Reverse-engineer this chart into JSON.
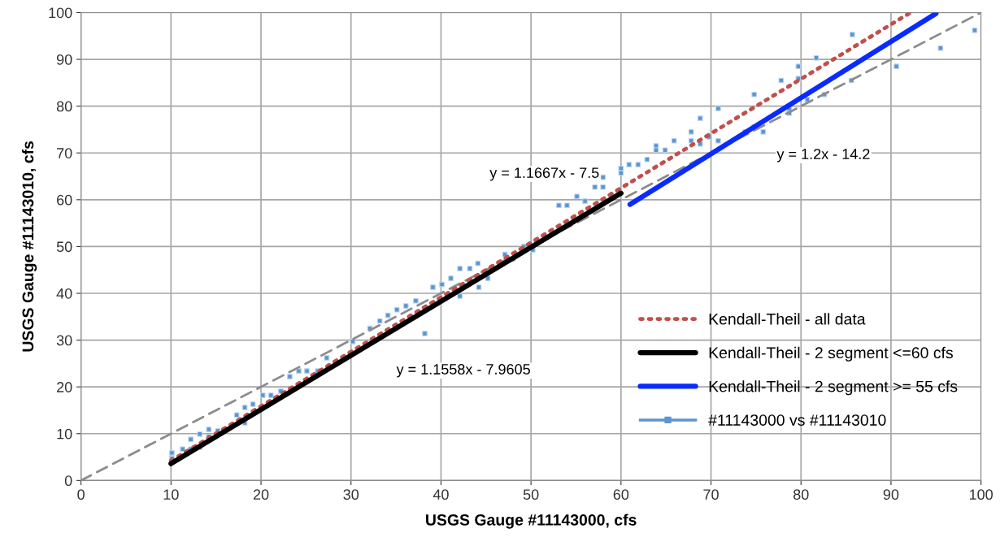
{
  "chart_data": {
    "type": "scatter",
    "xlabel": "USGS Gauge #11143000, cfs",
    "ylabel": "USGS Gauge #11143010, cfs",
    "xlim": [
      0,
      100
    ],
    "ylim": [
      0,
      100
    ],
    "xticks": [
      0,
      10,
      20,
      30,
      40,
      50,
      60,
      70,
      80,
      90,
      100
    ],
    "yticks": [
      0,
      10,
      20,
      30,
      40,
      50,
      60,
      70,
      80,
      90,
      100
    ],
    "grid": true,
    "legend": "lower right",
    "series": [
      {
        "type": "line",
        "color": "#8c8c8c",
        "line_style": "dashed",
        "marker": "none",
        "x": [
          0,
          100
        ],
        "values": [
          0,
          100
        ]
      },
      {
        "name": "#11143000 vs #11143010",
        "color": "#5b95d0",
        "marker": "square",
        "x": [
          10.1,
          10.1,
          11.3,
          12.2,
          12.2,
          13.2,
          13.2,
          14.2,
          14.2,
          15.2,
          16.1,
          17.3,
          18.2,
          18.2,
          19.1,
          20.2,
          21.1,
          22.2,
          23.2,
          24.2,
          25.1,
          26.3,
          27.3,
          30.2,
          32.1,
          33.2,
          34.1,
          35.1,
          36.1,
          37.2,
          38.2,
          39.1,
          40.1,
          41.1,
          42.1,
          42.1,
          43.2,
          44.1,
          44.2,
          45.2,
          47.1,
          48.0,
          49.2,
          50.2,
          53.1,
          54.0,
          55.1,
          56.0,
          57.1,
          58.0,
          58.0,
          60.0,
          60.0,
          60.9,
          61.9,
          62.9,
          63.9,
          63.9,
          64.9,
          65.9,
          67.8,
          67.8,
          68.8,
          68.8,
          69.8,
          70.8,
          70.8,
          73.8,
          74.8,
          74.8,
          75.8,
          77.8,
          78.7,
          78.7,
          79.7,
          79.7,
          80.7,
          81.7,
          82.6,
          85.6,
          85.7,
          90.6,
          95.5,
          99.3
        ],
        "values": [
          4.7,
          5.9,
          6.7,
          6.7,
          8.8,
          7.1,
          9.9,
          9.4,
          10.9,
          10.6,
          10.8,
          14.0,
          12.3,
          15.6,
          16.3,
          18.2,
          18.2,
          19.1,
          22.2,
          23.4,
          23.4,
          23.4,
          26.2,
          29.7,
          32.5,
          34.1,
          35.3,
          36.5,
          37.3,
          38.4,
          31.4,
          41.3,
          41.9,
          43.2,
          39.4,
          45.3,
          45.3,
          46.4,
          41.3,
          43.2,
          48.3,
          47.3,
          50.0,
          49.3,
          58.8,
          58.8,
          60.7,
          59.7,
          62.7,
          64.8,
          62.7,
          66.7,
          65.7,
          67.5,
          67.5,
          68.6,
          71.5,
          70.6,
          70.6,
          72.6,
          74.5,
          72.6,
          77.4,
          71.9,
          73.4,
          79.5,
          72.6,
          74.5,
          82.5,
          75.6,
          74.5,
          85.5,
          79.3,
          78.5,
          88.5,
          85.9,
          81.4,
          90.3,
          82.5,
          85.5,
          95.3,
          88.5,
          92.4,
          96.2
        ]
      },
      {
        "type": "line",
        "name": "Kendall-Theil - all data",
        "color": "#c0504d",
        "line_style": "dotted",
        "marker": "none",
        "x": [
          10,
          92
        ],
        "values": [
          4.2,
          99.8
        ]
      },
      {
        "type": "line",
        "name": "Kendall-Theil - 2 segment <=60 cfs",
        "color": "#000000",
        "line_style": "solid",
        "marker": "none",
        "x": [
          10,
          60
        ],
        "values": [
          3.6,
          61.4
        ]
      },
      {
        "type": "line",
        "name": "Kendall-Theil - 2 segment >= 55 cfs",
        "color": "#0a2bff",
        "line_style": "solid",
        "marker": "none",
        "x": [
          61,
          95
        ],
        "values": [
          59.0,
          99.8
        ]
      }
    ],
    "annotations": [
      "y = 1.1667x - 7.5",
      "y = 1.1558x - 7.9605",
      "y = 1.2x - 14.2"
    ]
  }
}
